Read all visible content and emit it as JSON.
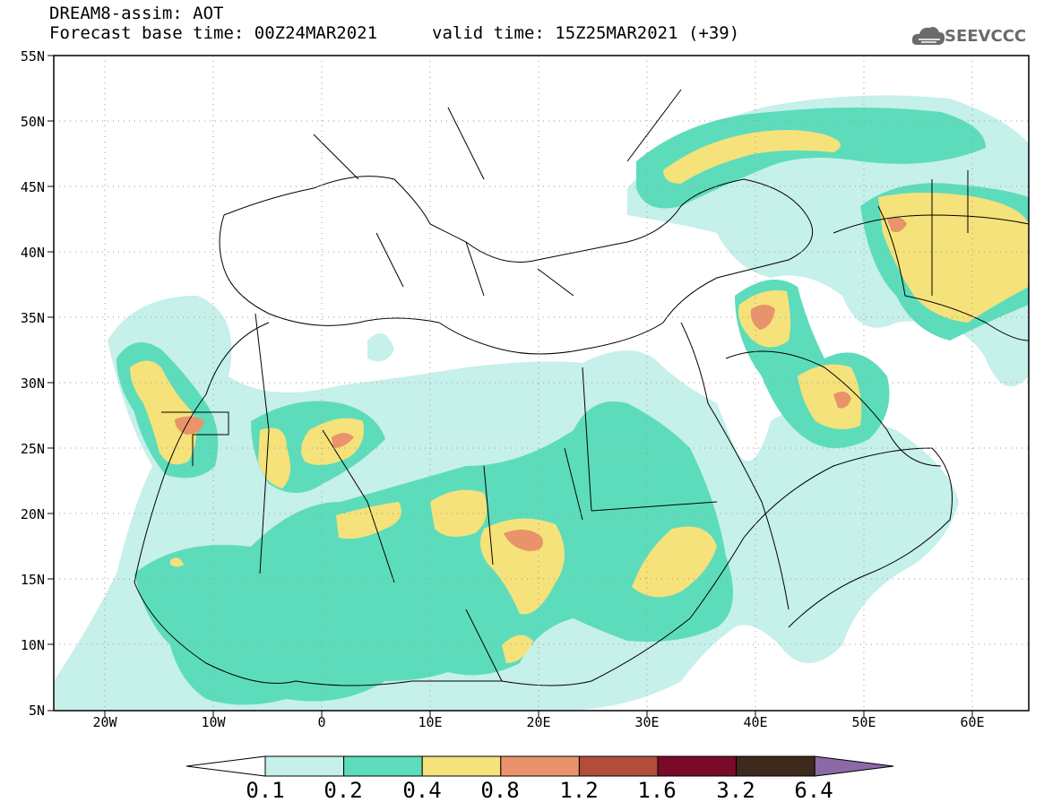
{
  "header": {
    "line1": "DREAM8-assim: AOT",
    "line2": "Forecast base time: 00Z24MAR2021",
    "valid": "valid time: 15Z25MAR2021 (+39)",
    "logo_text": "SEEVCCC",
    "logo_icon": "cloud-icon"
  },
  "map": {
    "lon_range": [
      -25,
      65
    ],
    "lat_range": [
      5,
      55
    ],
    "lat_labels": [
      "5N",
      "10N",
      "15N",
      "20N",
      "25N",
      "30N",
      "35N",
      "40N",
      "45N",
      "50N",
      "55N"
    ],
    "lon_labels": [
      "20W",
      "10W",
      "0",
      "10E",
      "20E",
      "30E",
      "40E",
      "50E",
      "60E"
    ],
    "grid": "dotted"
  },
  "legend": {
    "levels": [
      "0.1",
      "0.2",
      "0.4",
      "0.8",
      "1.2",
      "1.6",
      "3.2",
      "6.4"
    ],
    "colors": [
      "#ffffff",
      "#c6f0ea",
      "#5ddcbc",
      "#f5e27a",
      "#e9936a",
      "#b24d3a",
      "#7a0a2a",
      "#3e2a1c",
      "#8c6aa8"
    ]
  }
}
